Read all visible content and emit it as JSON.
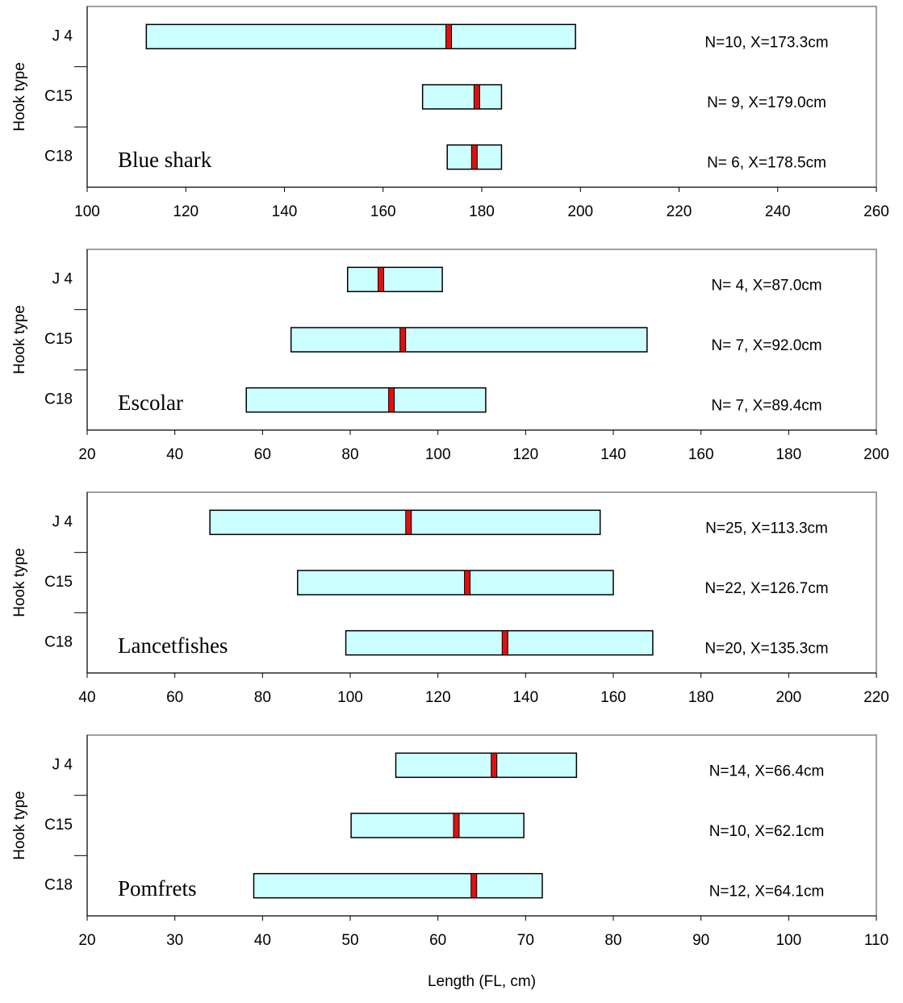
{
  "chart_data": [
    {
      "type": "range",
      "ylabel": "Hook type",
      "species": "Blue shark",
      "categories": [
        "J 4",
        "C15",
        "C18"
      ],
      "low": [
        112,
        168,
        173
      ],
      "high": [
        199,
        184,
        184
      ],
      "mean": [
        173.3,
        179.0,
        178.5
      ],
      "annotations": [
        "N=10,  X=173.3cm",
        "N= 9,  X=179.0cm",
        "N= 6,  X=178.5cm"
      ],
      "xlim": [
        100,
        260
      ],
      "xticks": [
        100,
        120,
        140,
        160,
        180,
        200,
        220,
        240,
        260
      ],
      "bar_color": "#ccffff",
      "mean_color": "#e01010"
    },
    {
      "type": "range",
      "ylabel": "Hook type",
      "species": "Escolar",
      "categories": [
        "J 4",
        "C15",
        "C18"
      ],
      "low": [
        79.4,
        66.5,
        56.3
      ],
      "high": [
        101,
        147.7,
        110.9
      ],
      "mean": [
        87.0,
        92.0,
        89.4
      ],
      "annotations": [
        "N= 4,  X=87.0cm",
        "N= 7,  X=92.0cm",
        "N= 7,  X=89.4cm"
      ],
      "xlim": [
        20,
        200
      ],
      "xticks": [
        20,
        40,
        60,
        80,
        100,
        120,
        140,
        160,
        180,
        200
      ],
      "bar_color": "#ccffff",
      "mean_color": "#e01010"
    },
    {
      "type": "range",
      "ylabel": "Hook type",
      "species": "Lancetfishes",
      "categories": [
        "J 4",
        "C15",
        "C18"
      ],
      "low": [
        68,
        88,
        99
      ],
      "high": [
        157,
        160,
        169
      ],
      "mean": [
        113.3,
        126.7,
        135.3
      ],
      "annotations": [
        "N=25,  X=113.3cm",
        "N=22,  X=126.7cm",
        "N=20,  X=135.3cm"
      ],
      "xlim": [
        40,
        220
      ],
      "xticks": [
        40,
        60,
        80,
        100,
        120,
        140,
        160,
        180,
        200,
        220
      ],
      "bar_color": "#ccffff",
      "mean_color": "#e01010"
    },
    {
      "type": "range",
      "ylabel": "Hook type",
      "species": "Pomfrets",
      "xlabel": "Length (FL, cm)",
      "categories": [
        "J 4",
        "C15",
        "C18"
      ],
      "low": [
        55.2,
        50.1,
        39
      ],
      "high": [
        75.8,
        69.8,
        71.9
      ],
      "mean": [
        66.4,
        62.1,
        64.1
      ],
      "annotations": [
        "N=14,  X=66.4cm",
        "N=10,  X=62.1cm",
        "N=12,  X=64.1cm"
      ],
      "xlim": [
        20,
        110
      ],
      "xticks": [
        20,
        30,
        40,
        50,
        60,
        70,
        80,
        90,
        100,
        110
      ],
      "bar_color": "#ccffff",
      "mean_color": "#e01010"
    }
  ]
}
